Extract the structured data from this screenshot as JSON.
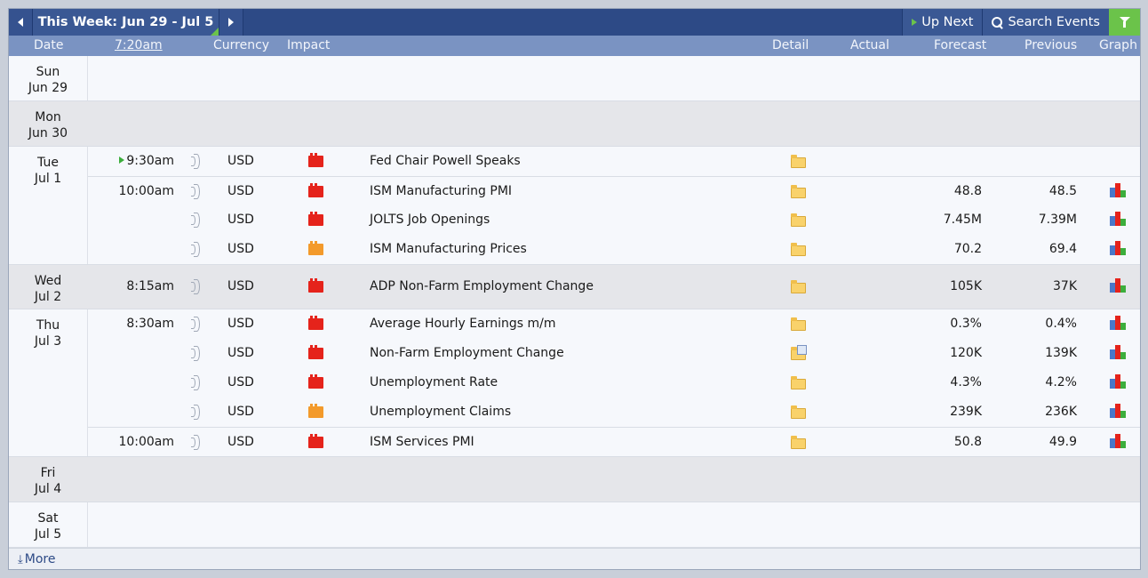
{
  "toolbar": {
    "week_title": "This Week: Jun 29 - Jul 5",
    "up_next_label": "Up Next",
    "search_label": "Search Events",
    "accent_color": "#6bc34a"
  },
  "header": {
    "date": "Date",
    "time": "7:20am",
    "currency": "Currency",
    "impact": "Impact",
    "detail": "Detail",
    "actual": "Actual",
    "forecast": "Forecast",
    "previous": "Previous",
    "graph": "Graph"
  },
  "days": [
    {
      "dow": "Sun",
      "date": "Jun 29",
      "events": []
    },
    {
      "dow": "Mon",
      "date": "Jun 30",
      "events": []
    },
    {
      "dow": "Tue",
      "date": "Jul 1",
      "events": [
        {
          "time": "9:30am",
          "upcoming": true,
          "currency": "USD",
          "impact": "high",
          "name": "Fed Chair Powell Speaks",
          "forecast": "",
          "previous": "",
          "graph": false
        },
        {
          "time": "10:00am",
          "currency": "USD",
          "impact": "high",
          "name": "ISM Manufacturing PMI",
          "forecast": "48.8",
          "previous": "48.5",
          "graph": true
        },
        {
          "time": "",
          "currency": "USD",
          "impact": "high",
          "name": "JOLTS Job Openings",
          "forecast": "7.45M",
          "previous": "7.39M",
          "graph": true
        },
        {
          "time": "",
          "currency": "USD",
          "impact": "medium",
          "name": "ISM Manufacturing Prices",
          "forecast": "70.2",
          "previous": "69.4",
          "graph": true
        }
      ]
    },
    {
      "dow": "Wed",
      "date": "Jul 2",
      "events": [
        {
          "time": "8:15am",
          "currency": "USD",
          "impact": "high",
          "name": "ADP Non-Farm Employment Change",
          "forecast": "105K",
          "previous": "37K",
          "graph": true
        }
      ]
    },
    {
      "dow": "Thu",
      "date": "Jul 3",
      "events": [
        {
          "time": "8:30am",
          "currency": "USD",
          "impact": "high",
          "name": "Average Hourly Earnings m/m",
          "forecast": "0.3%",
          "previous": "0.4%",
          "graph": true
        },
        {
          "time": "",
          "currency": "USD",
          "impact": "high",
          "name": "Non-Farm Employment Change",
          "forecast": "120K",
          "previous": "139K",
          "graph": true
        },
        {
          "time": "",
          "currency": "USD",
          "impact": "high",
          "name": "Unemployment Rate",
          "forecast": "4.3%",
          "previous": "4.2%",
          "graph": true
        },
        {
          "time": "",
          "currency": "USD",
          "impact": "medium",
          "name": "Unemployment Claims",
          "forecast": "239K",
          "previous": "236K",
          "graph": true
        },
        {
          "time": "10:00am",
          "currency": "USD",
          "impact": "high",
          "name": "ISM Services PMI",
          "forecast": "50.8",
          "previous": "49.9",
          "graph": true
        }
      ]
    },
    {
      "dow": "Fri",
      "date": "Jul 4",
      "events": []
    },
    {
      "dow": "Sat",
      "date": "Jul 5",
      "events": []
    }
  ],
  "footer": {
    "more_label": "More"
  }
}
